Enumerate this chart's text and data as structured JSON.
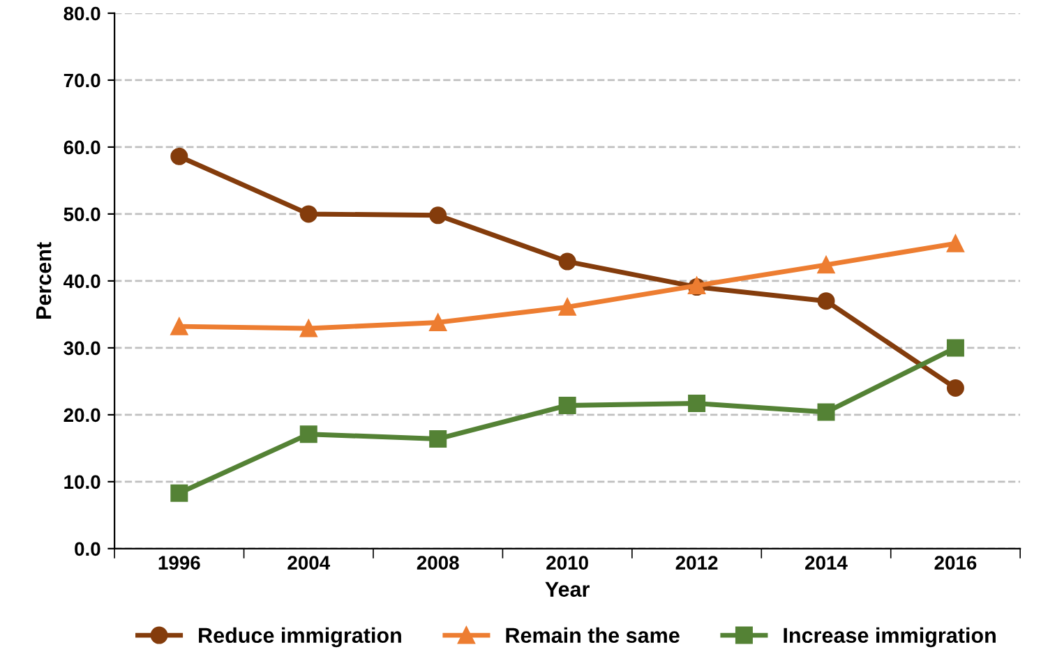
{
  "chart_data": {
    "type": "line",
    "xlabel": "Year",
    "ylabel": "Percent",
    "categories": [
      "1996",
      "2004",
      "2008",
      "2010",
      "2012",
      "2014",
      "2016"
    ],
    "series": [
      {
        "name": "Reduce immigration",
        "color": "#843c0c",
        "marker": "circle",
        "values": [
          58.6,
          50.0,
          49.8,
          42.9,
          39.1,
          37.0,
          24.0
        ]
      },
      {
        "name": "Remain the same",
        "color": "#ed7d31",
        "marker": "triangle",
        "values": [
          33.2,
          32.9,
          33.8,
          36.1,
          39.3,
          42.4,
          45.6
        ]
      },
      {
        "name": "Increase immigration",
        "color": "#548235",
        "marker": "square",
        "values": [
          8.3,
          17.1,
          16.4,
          21.4,
          21.7,
          20.4,
          30.0
        ]
      }
    ],
    "ylim": [
      0,
      80
    ],
    "yticks": [
      {
        "value": 0,
        "label": "0.0"
      },
      {
        "value": 10,
        "label": "10.0"
      },
      {
        "value": 20,
        "label": "20.0"
      },
      {
        "value": 30,
        "label": "30.0"
      },
      {
        "value": 40,
        "label": "40.0"
      },
      {
        "value": 50,
        "label": "50.0"
      },
      {
        "value": 60,
        "label": "60.0"
      },
      {
        "value": 70,
        "label": "70.0"
      },
      {
        "value": 80,
        "label": "80.0"
      }
    ],
    "grid": "y",
    "legend": "bottom",
    "line_style": "solid"
  }
}
